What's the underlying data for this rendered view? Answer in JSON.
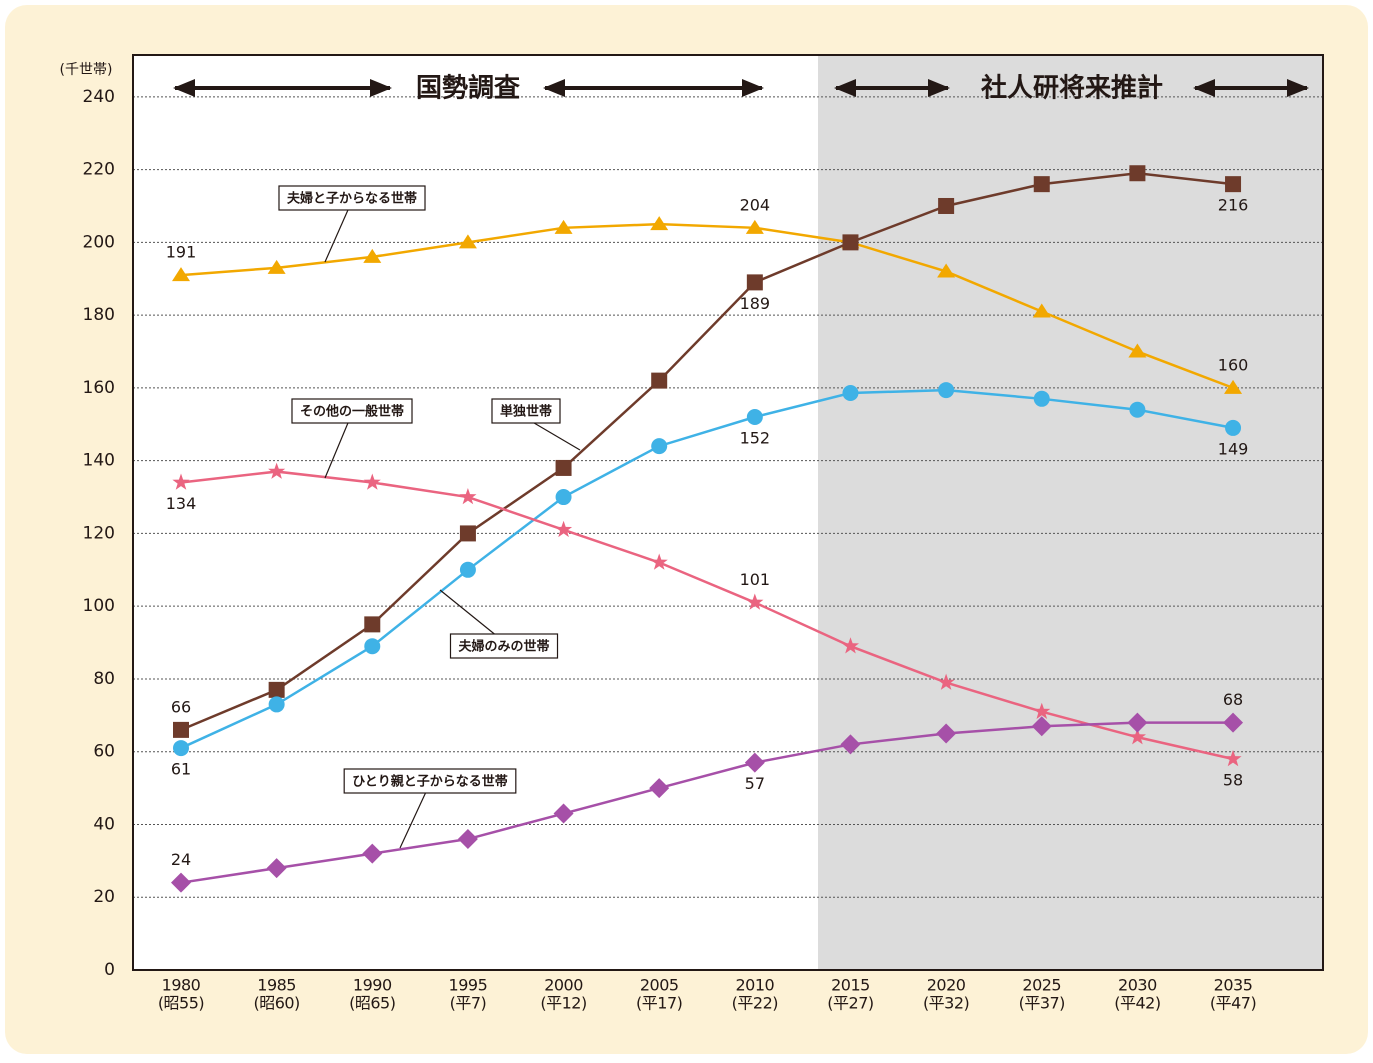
{
  "chart_data": {
    "type": "line",
    "y_unit": "(千世帯)",
    "categories": [
      "1980",
      "1985",
      "1990",
      "1995",
      "2000",
      "2005",
      "2010",
      "2015",
      "2020",
      "2025",
      "2030",
      "2035"
    ],
    "era_labels": [
      "(昭55)",
      "(昭60)",
      "(昭65)",
      "(平7)",
      "(平12)",
      "(平17)",
      "(平22)",
      "(平27)",
      "(平32)",
      "(平37)",
      "(平42)",
      "(平47)"
    ],
    "periods": [
      "国勢調査",
      "社人研将来推計"
    ],
    "ylim": [
      0,
      251.5
    ],
    "yticks": [
      0,
      20,
      40,
      60,
      80,
      100,
      120,
      140,
      160,
      180,
      200,
      220,
      240
    ],
    "grid": true,
    "series": [
      {
        "name": "夫婦と子からなる世帯",
        "color": "#f2a800",
        "marker": "triangle",
        "values": [
          191,
          193,
          196,
          200,
          204,
          205,
          204,
          200,
          192,
          181,
          170,
          160
        ],
        "labeled_points": [
          {
            "index": 0,
            "position": "above"
          },
          {
            "index": 6,
            "position": "above"
          },
          {
            "index": 11,
            "position": "above"
          }
        ]
      },
      {
        "name": "単独世帯",
        "color": "#6e3b2b",
        "marker": "square",
        "values": [
          66,
          77,
          95,
          120,
          138,
          162,
          189,
          200,
          210,
          216,
          219,
          216
        ],
        "labeled_points": [
          {
            "index": 0,
            "position": "above"
          },
          {
            "index": 6,
            "position": "below"
          },
          {
            "index": 11,
            "position": "below"
          }
        ]
      },
      {
        "name": "夫婦のみの世帯",
        "color": "#3fb2e6",
        "marker": "circle",
        "values": [
          61,
          73,
          89,
          110,
          130,
          144,
          152,
          158.6,
          159.4,
          157,
          154,
          149
        ],
        "labeled_points": [
          {
            "index": 0,
            "position": "below"
          },
          {
            "index": 6,
            "position": "below"
          },
          {
            "index": 11,
            "position": "below"
          }
        ]
      },
      {
        "name": "その他の一般世帯",
        "color": "#ea6480",
        "marker": "star",
        "values": [
          134,
          137,
          134,
          130,
          121,
          112,
          101,
          89,
          79,
          71,
          64,
          58
        ],
        "labeled_points": [
          {
            "index": 0,
            "position": "below"
          },
          {
            "index": 6,
            "position": "above"
          },
          {
            "index": 11,
            "position": "below"
          }
        ]
      },
      {
        "name": "ひとり親と子からなる世帯",
        "color": "#a650a8",
        "marker": "diamond",
        "values": [
          24,
          28,
          32,
          36,
          43,
          50,
          57,
          62,
          65,
          67,
          68,
          68
        ],
        "labeled_points": [
          {
            "index": 0,
            "position": "above"
          },
          {
            "index": 6,
            "position": "below"
          },
          {
            "index": 11,
            "position": "above"
          }
        ]
      }
    ]
  }
}
